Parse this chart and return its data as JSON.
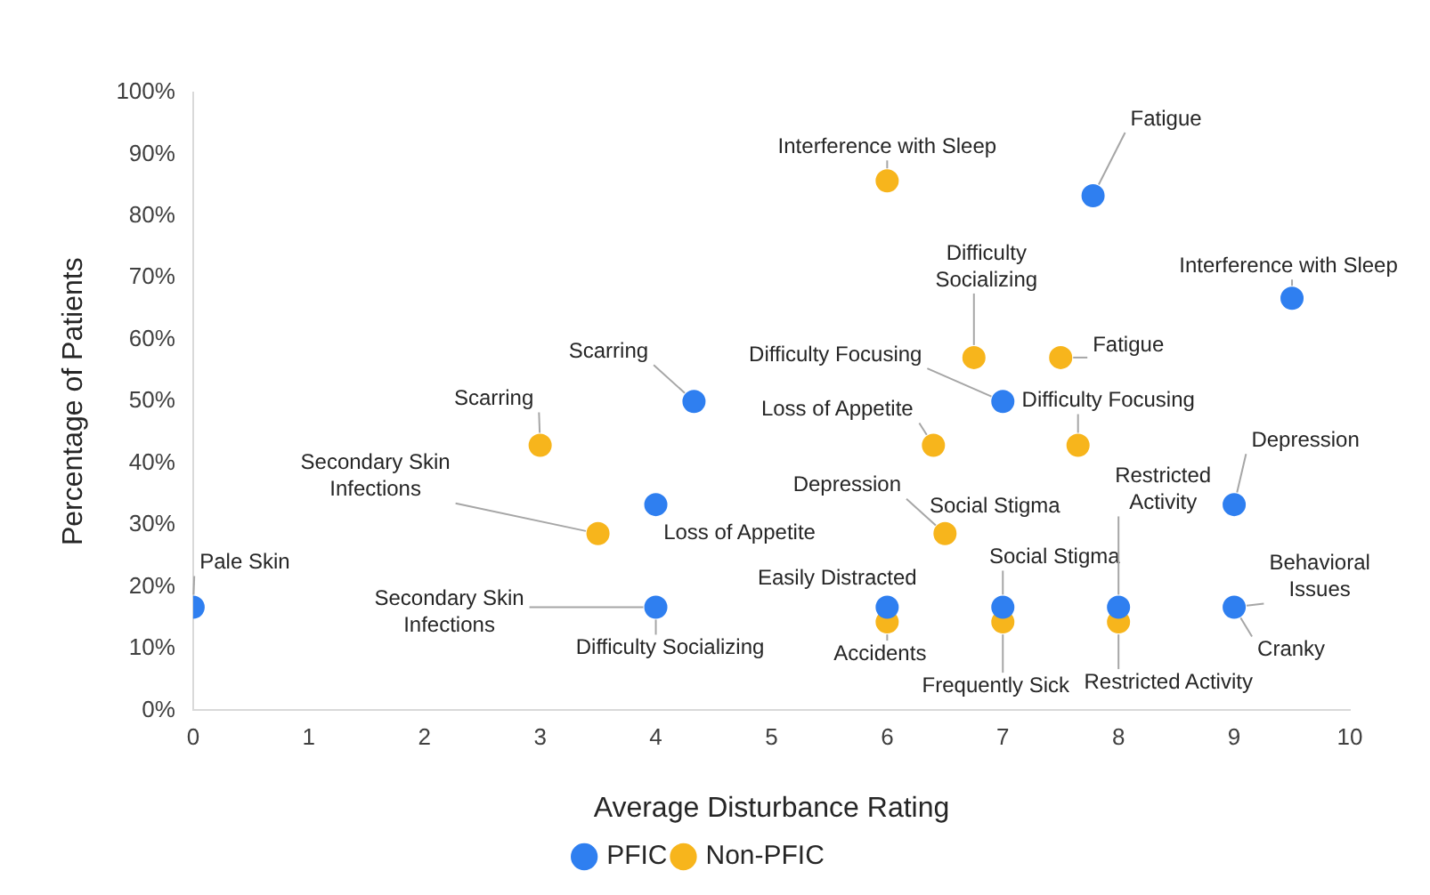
{
  "chart_data": {
    "type": "scatter",
    "xlabel": "Average Disturbance Rating",
    "ylabel": "Percentage of Patients",
    "xlim": [
      0,
      10
    ],
    "xticks": [
      0,
      1,
      2,
      3,
      4,
      5,
      6,
      7,
      8,
      9,
      10
    ],
    "ylim": [
      0,
      100
    ],
    "yticks": [
      {
        "value": 0,
        "label": "0%"
      },
      {
        "value": 10,
        "label": "10%"
      },
      {
        "value": 20,
        "label": "20%"
      },
      {
        "value": 30,
        "label": "30%"
      },
      {
        "value": 40,
        "label": "40%"
      },
      {
        "value": 50,
        "label": "50%"
      },
      {
        "value": 60,
        "label": "60%"
      },
      {
        "value": 70,
        "label": "70%"
      },
      {
        "value": 80,
        "label": "80%"
      },
      {
        "value": 90,
        "label": "90%"
      },
      {
        "value": 100,
        "label": "100%"
      }
    ],
    "grid": false,
    "legend": "bottom",
    "marker": "circle",
    "series": [
      {
        "name": "PFIC",
        "color": "#2f7ff0",
        "x": [
          0,
          4,
          4,
          4.33,
          7.78,
          9.5,
          7,
          9,
          6,
          7,
          8,
          9
        ],
        "values": [
          16.7,
          16.7,
          33.3,
          50,
          83.3,
          66.7,
          50,
          33.3,
          16.7,
          16.7,
          16.7,
          16.7
        ]
      },
      {
        "name": "Non-PFIC",
        "color": "#f7b51c",
        "x": [
          3,
          3.5,
          6,
          6.75,
          7.5,
          6.4,
          7.65,
          6.5,
          6,
          7,
          8
        ],
        "values": [
          42.9,
          28.6,
          85.7,
          57.1,
          57.1,
          42.9,
          42.9,
          28.6,
          14.3,
          14.3,
          14.3
        ]
      }
    ],
    "annotations": [
      {
        "text": "Pale Skin",
        "x": 0,
        "y": 16.7
      },
      {
        "text": "Secondary Skin Infections",
        "x": 4,
        "y": 16.7
      },
      {
        "text": "Difficulty Socializing",
        "x": 4,
        "y": 16.7
      },
      {
        "text": "Loss of Appetite",
        "x": 4,
        "y": 33.3
      },
      {
        "text": "Scarring",
        "x": 4.33,
        "y": 50
      },
      {
        "text": "Fatigue",
        "x": 7.78,
        "y": 83.3
      },
      {
        "text": "Interference with Sleep",
        "x": 9.5,
        "y": 66.7
      },
      {
        "text": "Difficulty Focusing",
        "x": 7,
        "y": 50
      },
      {
        "text": "Depression",
        "x": 9,
        "y": 33.3
      },
      {
        "text": "Easily Distracted",
        "x": 6,
        "y": 16.7
      },
      {
        "text": "Social Stigma",
        "x": 7,
        "y": 16.7
      },
      {
        "text": "Restricted Activity",
        "x": 8,
        "y": 16.7
      },
      {
        "text": "Behavioral Issues",
        "x": 9,
        "y": 16.7
      },
      {
        "text": "Cranky",
        "x": 9,
        "y": 16.7
      },
      {
        "text": "Scarring",
        "x": 3,
        "y": 42.9
      },
      {
        "text": "Secondary Skin Infections",
        "x": 3.5,
        "y": 28.6
      },
      {
        "text": "Interference with Sleep",
        "x": 6,
        "y": 85.7
      },
      {
        "text": "Difficulty Socializing",
        "x": 6.75,
        "y": 57.1
      },
      {
        "text": "Fatigue",
        "x": 7.5,
        "y": 57.1
      },
      {
        "text": "Loss of Appetite",
        "x": 6.4,
        "y": 42.9
      },
      {
        "text": "Difficulty Focusing",
        "x": 7.65,
        "y": 42.9
      },
      {
        "text": "Depression",
        "x": 6.5,
        "y": 28.6
      },
      {
        "text": "Social Stigma",
        "x": 6.5,
        "y": 28.6
      },
      {
        "text": "Accidents",
        "x": 6,
        "y": 14.3
      },
      {
        "text": "Frequently Sick",
        "x": 7,
        "y": 14.3
      },
      {
        "text": "Restricted Activity",
        "x": 8,
        "y": 14.3
      }
    ]
  }
}
